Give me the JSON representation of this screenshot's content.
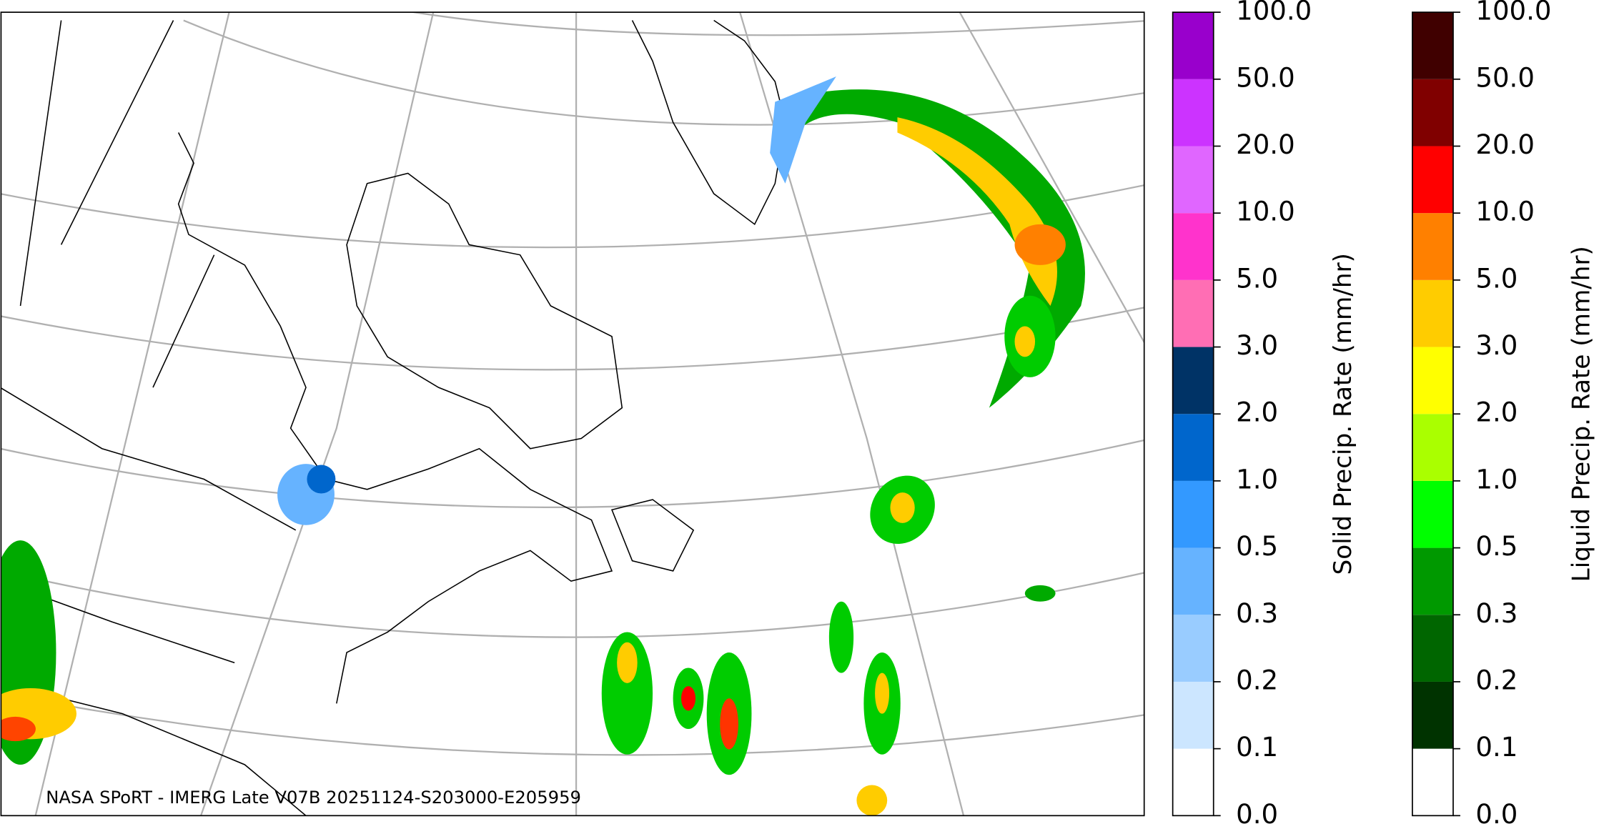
{
  "map": {
    "attribution": "NASA SPoRT - IMERG Late V07B 20251124-S203000-E205959"
  },
  "colorbars": [
    {
      "label": "Solid Precip. Rate (mm/hr)",
      "ticks": [
        {
          "value": 0,
          "label": "0.0"
        },
        {
          "value": 0.1,
          "label": "0.1"
        },
        {
          "value": 0.2,
          "label": "0.2"
        },
        {
          "value": 0.3,
          "label": "0.3"
        },
        {
          "value": 0.5,
          "label": "0.5"
        },
        {
          "value": 1,
          "label": "1.0"
        },
        {
          "value": 2,
          "label": "2.0"
        },
        {
          "value": 3,
          "label": "3.0"
        },
        {
          "value": 5,
          "label": "5.0"
        },
        {
          "value": 10,
          "label": "10.0"
        },
        {
          "value": 20,
          "label": "20.0"
        },
        {
          "value": 50,
          "label": "50.0"
        },
        {
          "value": 100,
          "label": "100.0"
        }
      ],
      "colors": [
        "#ffffff",
        "#cce6ff",
        "#99ccff",
        "#66b3ff",
        "#3399ff",
        "#0066cc",
        "#003366",
        "#ff6eb4",
        "#ff33cc",
        "#e066ff",
        "#cc33ff",
        "#9900cc"
      ]
    },
    {
      "label": "Liquid Precip. Rate (mm/hr)",
      "ticks": [
        {
          "value": 0,
          "label": "0.0"
        },
        {
          "value": 0.1,
          "label": "0.1"
        },
        {
          "value": 0.2,
          "label": "0.2"
        },
        {
          "value": 0.3,
          "label": "0.3"
        },
        {
          "value": 0.5,
          "label": "0.5"
        },
        {
          "value": 1,
          "label": "1.0"
        },
        {
          "value": 2,
          "label": "2.0"
        },
        {
          "value": 3,
          "label": "3.0"
        },
        {
          "value": 5,
          "label": "5.0"
        },
        {
          "value": 10,
          "label": "10.0"
        },
        {
          "value": 20,
          "label": "20.0"
        },
        {
          "value": 50,
          "label": "50.0"
        },
        {
          "value": 100,
          "label": "100.0"
        }
      ],
      "colors": [
        "#ffffff",
        "#003300",
        "#006600",
        "#009900",
        "#00ff00",
        "#aaff00",
        "#ffff00",
        "#ffcc00",
        "#ff8000",
        "#ff0000",
        "#800000",
        "#400000"
      ]
    }
  ]
}
